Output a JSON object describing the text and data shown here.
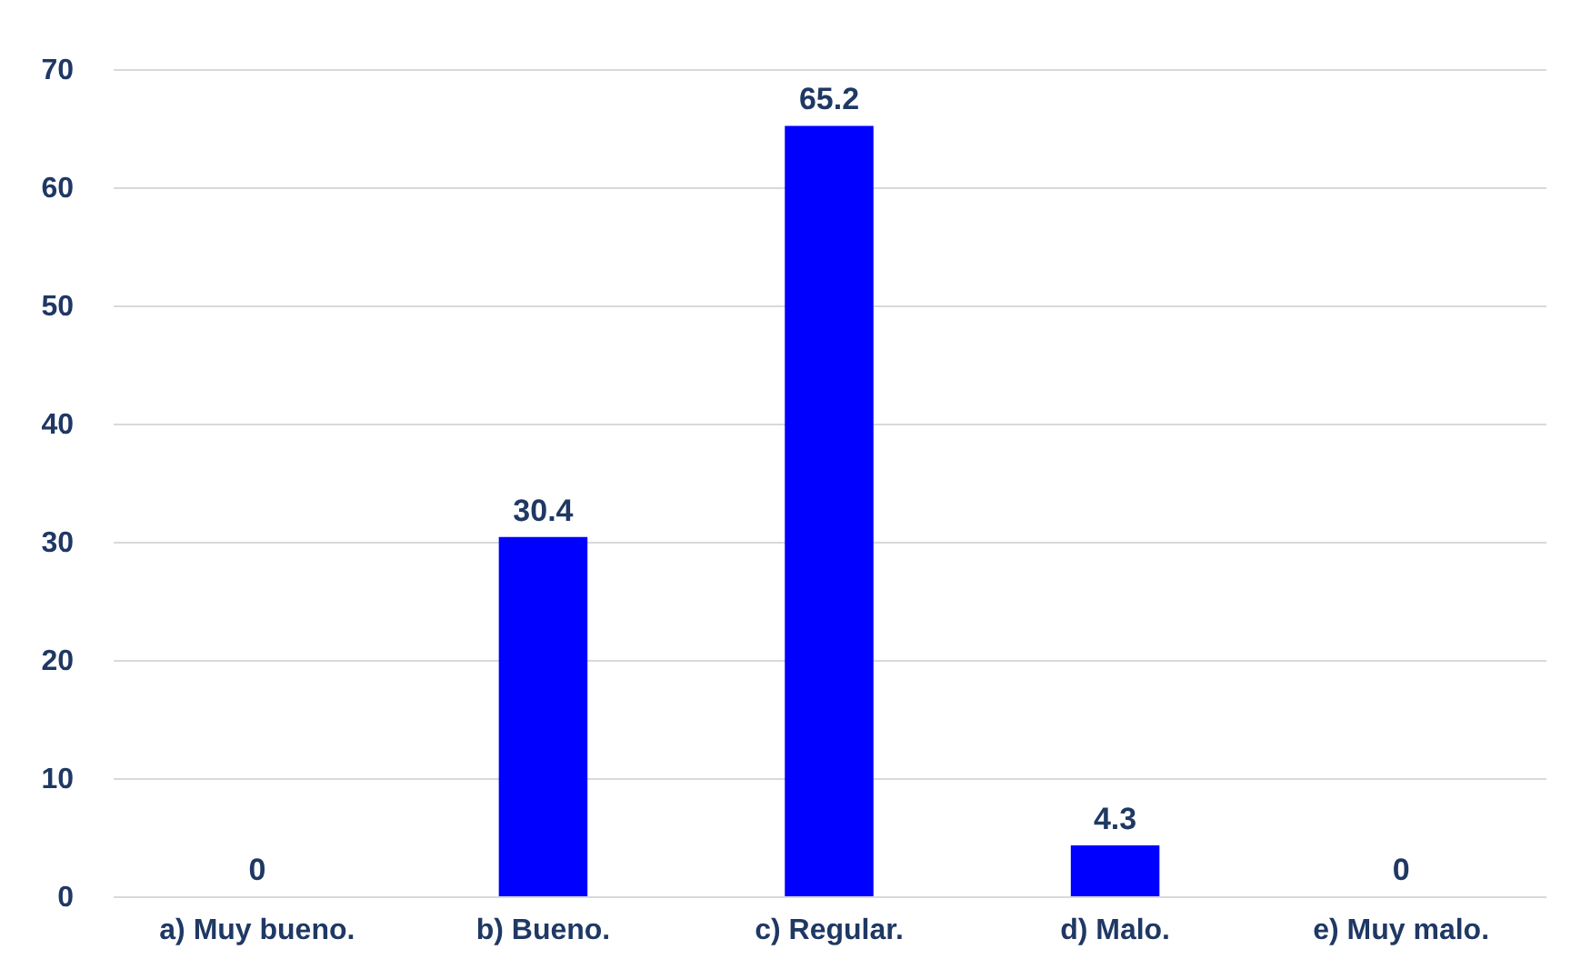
{
  "chart_data": {
    "type": "bar",
    "categories": [
      "a) Muy bueno.",
      "b) Bueno.",
      "c) Regular.",
      "d) Malo.",
      "e) Muy malo."
    ],
    "values": [
      0,
      30.4,
      65.2,
      4.3,
      0
    ],
    "color": "#0000ff",
    "ylim": [
      0,
      70
    ],
    "yticks": [
      0,
      10,
      20,
      30,
      40,
      50,
      60,
      70
    ],
    "grid": "y",
    "data_labels": true
  }
}
